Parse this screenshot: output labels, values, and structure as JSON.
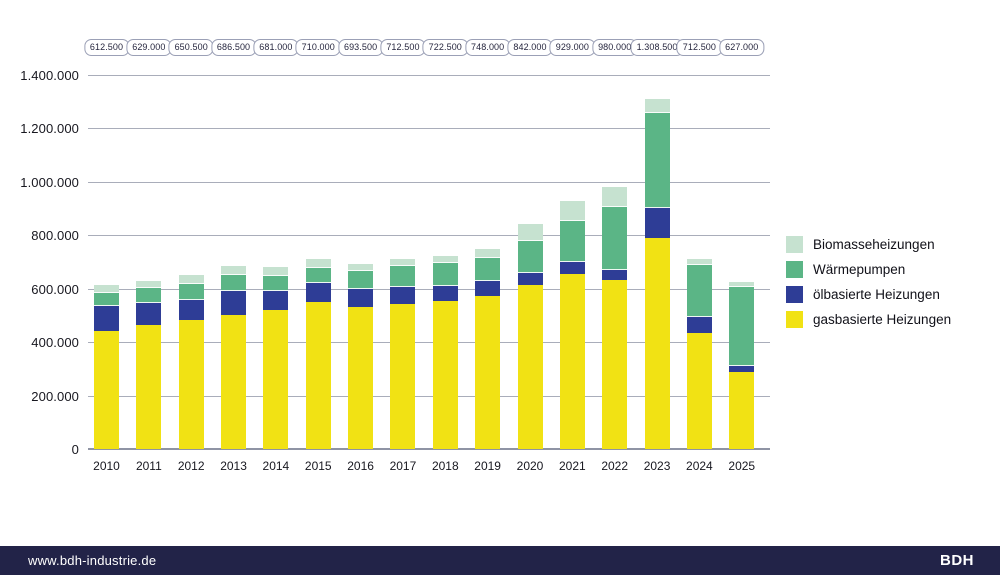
{
  "chart_data": {
    "type": "bar",
    "stacked": true,
    "categories": [
      "2010",
      "2011",
      "2012",
      "2013",
      "2014",
      "2015",
      "2016",
      "2017",
      "2018",
      "2019",
      "2020",
      "2021",
      "2022",
      "2023",
      "2024",
      "2025"
    ],
    "totals": [
      "612.500",
      "629.000",
      "650.500",
      "686.500",
      "681.000",
      "710.000",
      "693.500",
      "712.500",
      "722.500",
      "748.000",
      "842.000",
      "929.000",
      "980.000",
      "1.308.500",
      "712.500",
      "627.000"
    ],
    "series": [
      {
        "name": "gasbasierte Heizungen",
        "color": "#f1e214",
        "values": [
          441500,
          465000,
          483000,
          500000,
          519000,
          549500,
          531000,
          543000,
          555500,
          574000,
          613000,
          657000,
          632000,
          790500,
          432500,
          287000
        ]
      },
      {
        "name": "ölbasierte Heizungen",
        "color": "#2e3d96",
        "values": [
          93000,
          80500,
          76500,
          90000,
          71500,
          72000,
          67500,
          63500,
          56500,
          56000,
          46500,
          44500,
          39000,
          112500,
          63000,
          25000
        ]
      },
      {
        "name": "Wärmepumpen",
        "color": "#5bb586",
        "values": [
          51000,
          57000,
          59500,
          60000,
          58000,
          57000,
          66500,
          78000,
          84000,
          86000,
          120000,
          154000,
          236000,
          356000,
          193000,
          295000
        ]
      },
      {
        "name": "Biomasseheizungen",
        "color": "#c6e2d0",
        "values": [
          27000,
          26500,
          31500,
          36500,
          32500,
          31500,
          28500,
          28000,
          26500,
          32000,
          62500,
          73500,
          73000,
          49500,
          24000,
          20000
        ]
      }
    ],
    "legend": [
      {
        "label": "Biomasseheizungen",
        "color": "#c6e2d0"
      },
      {
        "label": "Wärmepumpen",
        "color": "#5bb586"
      },
      {
        "label": "ölbasierte Heizungen",
        "color": "#2e3d96"
      },
      {
        "label": "gasbasierte Heizungen",
        "color": "#f1e214"
      }
    ],
    "y_axis": {
      "max": 1400000,
      "ticks": [
        "0",
        "200.000",
        "400.000",
        "600.000",
        "800.000",
        "1.000.000",
        "1.200.000",
        "1.400.000"
      ]
    },
    "grid": "horizontal"
  },
  "footer": {
    "url": "www.bdh-industrie.de",
    "logo": "BDH"
  }
}
